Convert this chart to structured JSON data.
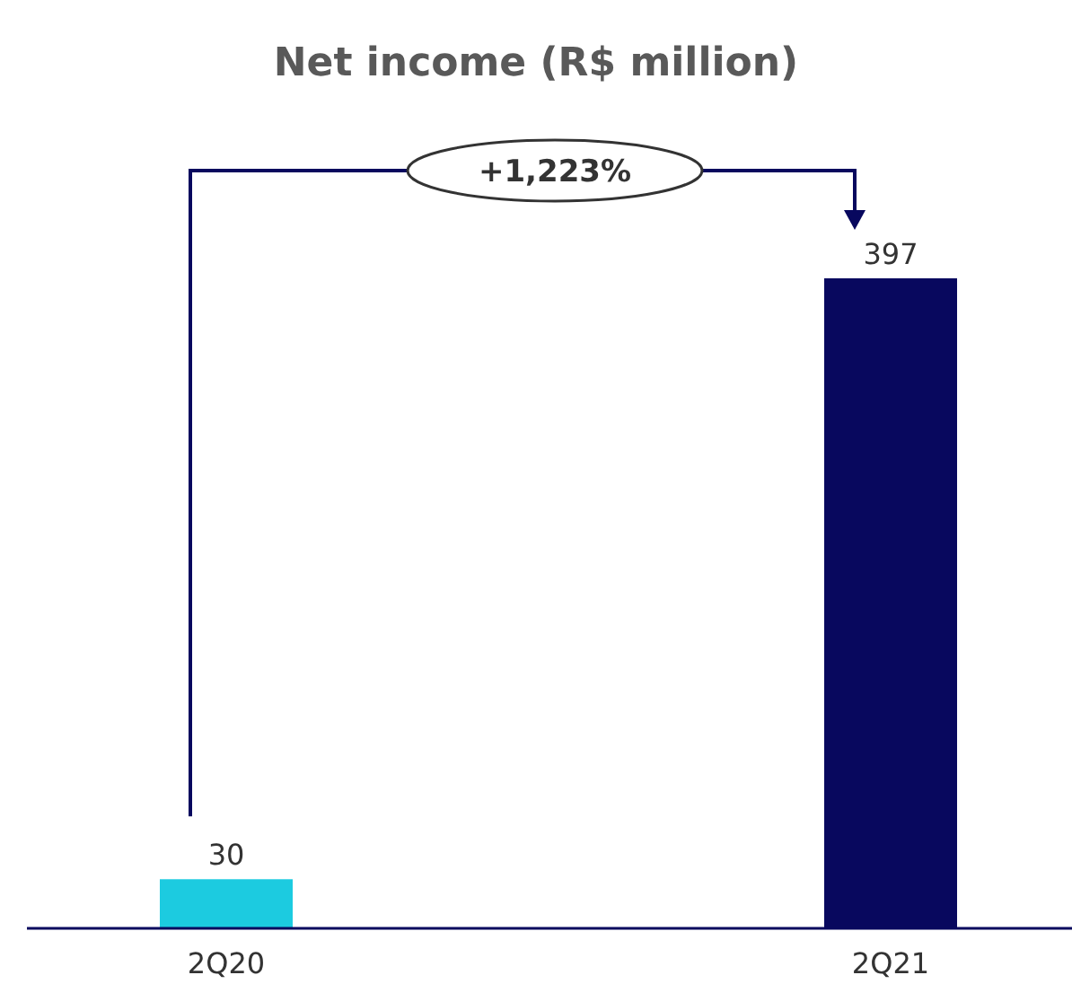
{
  "chart_data": {
    "type": "bar",
    "title": "Net income (R$ million)",
    "categories": [
      "2Q20",
      "2Q21"
    ],
    "values": [
      30,
      397
    ],
    "colors": [
      "#1ccbe0",
      "#08085e"
    ],
    "data_labels": true,
    "annotations": [
      "+1,223%"
    ]
  }
}
